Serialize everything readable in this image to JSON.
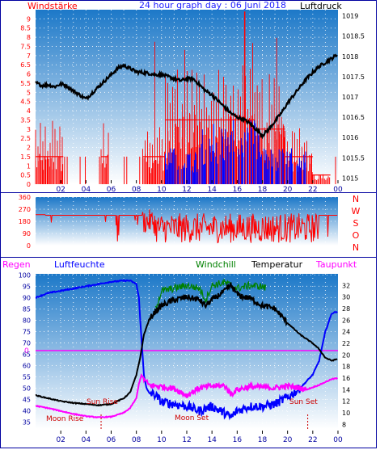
{
  "panel1": {
    "title": "24 hour graph day : 06 Juni 2018",
    "left_label": "Windstärke",
    "right_label": "Luftdruck",
    "x_ticks": [
      "02",
      "04",
      "06",
      "08",
      "10",
      "12",
      "14",
      "16",
      "18",
      "20",
      "22",
      "00"
    ],
    "y_left_ticks": [
      "0",
      "0.5",
      "1",
      "1.5",
      "2",
      "2.5",
      "3",
      "3.5",
      "4",
      "4.5",
      "5",
      "5.5",
      "6",
      "6.5",
      "7",
      "7.5",
      "8",
      "8.5",
      "9"
    ],
    "y_right_ticks": [
      "1015",
      "1015.5",
      "1016",
      "1016.5",
      "1017",
      "1017.5",
      "1018",
      "1018.5",
      "1019"
    ]
  },
  "panel2": {
    "y_ticks": [
      "0",
      "90",
      "180",
      "270",
      "360"
    ],
    "compass_labels": [
      "N",
      "W",
      "S",
      "O",
      "N"
    ]
  },
  "panel3": {
    "labels": {
      "regen": "Regen",
      "luftfeuchte": "Luftfeuchte",
      "windchill": "Windchill",
      "temperatur": "Temperatur",
      "taupunkt": "Taupunkt"
    },
    "regen_value": "0",
    "y_left_ticks": [
      "35",
      "40",
      "45",
      "50",
      "55",
      "60",
      "65",
      "70",
      "75",
      "80",
      "85",
      "90",
      "95",
      "100"
    ],
    "y_right_ticks": [
      "8",
      "10",
      "12",
      "14",
      "16",
      "18",
      "20",
      "22",
      "24",
      "26",
      "28",
      "30",
      "32"
    ],
    "x_ticks": [
      "02",
      "04",
      "06",
      "08",
      "10",
      "12",
      "14",
      "16",
      "18",
      "20",
      "22",
      "00"
    ],
    "annotations": {
      "sun_rise": "Sun Rise",
      "moon_rise": "Moon Rise",
      "moon_set": "Moon Set",
      "sun_set": "Sun Set"
    }
  },
  "colors": {
    "windstaerke": "#ff0000",
    "luftdruck": "#000000",
    "title": "#2020ff",
    "gust": "#0000ff",
    "wind": "#ff0000",
    "direction": "#ff0000",
    "humidity": "#0000ff",
    "temperature": "#000000",
    "windchill": "#008000",
    "dewpoint": "#ff00ff",
    "regen": "#ff00ff",
    "annotation": "#cc0000",
    "sky_top": "#1c78c8",
    "sky_bottom": "#ffffff"
  },
  "chart_data": [
    {
      "type": "line",
      "name_left": "Windstärke",
      "name_right": "Luftdruck",
      "x_range_hours": [
        0,
        24
      ],
      "ylim_left": [
        0,
        9.5
      ],
      "ylim_right": [
        1014.85,
        1019.15
      ],
      "pressure": {
        "hours": [
          0,
          0.5,
          1,
          1.5,
          2,
          2.5,
          3,
          3.5,
          4,
          4.5,
          5,
          5.5,
          6,
          6.5,
          7,
          7.5,
          8,
          8.5,
          9,
          9.5,
          10,
          10.5,
          11,
          11.5,
          12,
          12.5,
          13,
          13.5,
          14,
          14.5,
          15,
          15.5,
          16,
          16.5,
          17,
          17.5,
          18,
          18.5,
          19,
          19.5,
          20,
          20.5,
          21,
          21.5,
          22,
          22.5,
          23,
          23.5,
          24
        ],
        "values": [
          1017.35,
          1017.28,
          1017.3,
          1017.25,
          1017.32,
          1017.27,
          1017.15,
          1017.05,
          1016.95,
          1017.1,
          1017.25,
          1017.4,
          1017.55,
          1017.7,
          1017.78,
          1017.7,
          1017.62,
          1017.6,
          1017.58,
          1017.55,
          1017.55,
          1017.5,
          1017.45,
          1017.4,
          1017.45,
          1017.45,
          1017.3,
          1017.15,
          1017.05,
          1016.9,
          1016.75,
          1016.6,
          1016.5,
          1016.45,
          1016.35,
          1016.2,
          1016.05,
          1016.2,
          1016.4,
          1016.6,
          1016.85,
          1017.05,
          1017.25,
          1017.45,
          1017.6,
          1017.75,
          1017.85,
          1017.95,
          1018.05
        ]
      },
      "wind_segments": [
        {
          "from": 0,
          "to": 2.2,
          "level": 1.5
        },
        {
          "from": 2.2,
          "to": 5.2,
          "level": 0
        },
        {
          "from": 5.2,
          "to": 5.8,
          "level": 1.5
        },
        {
          "from": 5.8,
          "to": 8.5,
          "level": 0
        },
        {
          "from": 8.5,
          "to": 10.3,
          "level": 1.5
        },
        {
          "from": 10.3,
          "to": 17.4,
          "level": 3.5
        },
        {
          "from": 17.4,
          "to": 19.8,
          "level": 3.0
        },
        {
          "from": 19.8,
          "to": 22.0,
          "level": 1.5
        },
        {
          "from": 22.0,
          "to": 23.4,
          "level": 0.5
        },
        {
          "from": 23.4,
          "to": 24,
          "level": 0
        }
      ],
      "gust_max": 9.4
    },
    {
      "type": "line",
      "name": "Windrichtung",
      "ylim": [
        0,
        360
      ],
      "yticks": [
        0,
        90,
        180,
        270,
        360
      ],
      "base_values": [
        {
          "from": 0,
          "to": 0.8,
          "value": 230
        },
        {
          "from": 0.8,
          "to": 3,
          "value": 225
        },
        {
          "from": 3,
          "to": 6,
          "value": 225
        },
        {
          "from": 6,
          "to": 8.5,
          "value": 225
        },
        {
          "from": 8.5,
          "to": 9.5,
          "value": 180
        },
        {
          "from": 9.5,
          "to": 22.5,
          "value": 130
        },
        {
          "from": 22.5,
          "to": 24,
          "value": 225
        }
      ]
    },
    {
      "type": "line",
      "name_left": "Luftfeuchte",
      "name_right": "Temperatur",
      "ylim_left": [
        32,
        100.5
      ],
      "ylim_right": [
        7.2,
        34
      ],
      "regen": 0,
      "humidity": {
        "hours": [
          0,
          1,
          2,
          3,
          4,
          5,
          6,
          7,
          7.5,
          8,
          8.2,
          8.4,
          8.6,
          8.8,
          9,
          9.5,
          10,
          11,
          12,
          13,
          14,
          15,
          15.5,
          16,
          16.5,
          17,
          18,
          19,
          20,
          20.5,
          21,
          21.5,
          22,
          22.5,
          23,
          23.5,
          24
        ],
        "values": [
          90,
          92,
          93,
          94,
          95,
          96,
          97,
          97.5,
          97.5,
          96,
          90,
          72,
          56,
          50,
          48,
          47,
          44,
          43,
          42,
          40,
          42,
          39,
          37,
          40,
          41,
          42,
          42,
          43,
          46,
          48,
          50,
          53,
          56,
          62,
          75,
          83,
          84
        ]
      },
      "temperature": {
        "hours": [
          0,
          1,
          2,
          3,
          4,
          5,
          6,
          7,
          7.5,
          8,
          8.3,
          8.6,
          9,
          9.5,
          10,
          11,
          12,
          13,
          13.5,
          14,
          15,
          15.5,
          16,
          16.5,
          17,
          18,
          19,
          20,
          20.5,
          21,
          22,
          22.5,
          23,
          23.5,
          24
        ],
        "values": [
          13.0,
          12.5,
          12.0,
          11.7,
          11.5,
          11.3,
          11.5,
          12.5,
          13.5,
          16.5,
          19.5,
          23.5,
          26.0,
          27.5,
          28.5,
          29.5,
          30.0,
          29.5,
          28.5,
          29.5,
          31.0,
          32.0,
          30.5,
          30.0,
          29.8,
          28.5,
          28.0,
          25.5,
          24.5,
          23.5,
          22.0,
          21.0,
          19.5,
          19.0,
          19.3
        ]
      },
      "windchill": {
        "hours": [
          9.5,
          10,
          11,
          12,
          13,
          13.5,
          14,
          15,
          15.5,
          16,
          17,
          18,
          18.3
        ],
        "values": [
          28.0,
          31.0,
          31.5,
          32.0,
          31.5,
          29.5,
          32.0,
          32.5,
          32.0,
          31.5,
          32.0,
          31.8,
          31.5
        ]
      },
      "dewpoint": {
        "hours": [
          0,
          1,
          2,
          3,
          4,
          5,
          6,
          7,
          7.5,
          8,
          8.2,
          8.4,
          8.7,
          9,
          10,
          11,
          12,
          13,
          14,
          15,
          15.5,
          16,
          17,
          18,
          19,
          20,
          21,
          21.5,
          22,
          22.5,
          23,
          23.5,
          24
        ],
        "values": [
          11.2,
          10.8,
          10.3,
          9.8,
          9.4,
          9.2,
          9.3,
          10.0,
          10.8,
          12.5,
          15.0,
          16.5,
          15.5,
          14.8,
          14.5,
          14.2,
          13.0,
          14.3,
          14.6,
          14.7,
          13.2,
          14.0,
          14.5,
          14.4,
          14.3,
          14.6,
          14.3,
          14.0,
          14.4,
          14.8,
          15.3,
          15.8,
          16.0
        ]
      },
      "sun_rise_hour": 5.2,
      "sun_set_hour": 21.6
    }
  ]
}
